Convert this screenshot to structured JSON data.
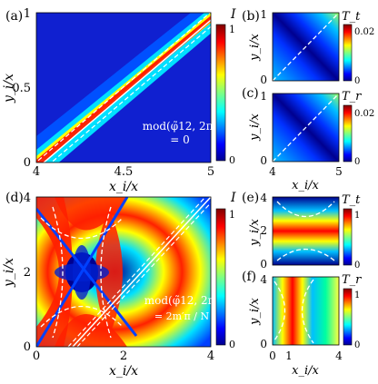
{
  "panels": {
    "a": {
      "label": "(a)",
      "xlabel": "x_i/x",
      "ylabel": "y_i/x",
      "xticks": [
        "4",
        "4.5",
        "5"
      ],
      "yticks": [
        "0",
        "0.5",
        "1"
      ],
      "cbar_title": "I",
      "cbar_ticks": [
        "0",
        "1"
      ],
      "annotation_line1": "mod(φ̃12, 2π)",
      "annotation_line2": "= 0"
    },
    "b": {
      "label": "(b)",
      "ylabel": "y_i/x",
      "yticks": [
        "0",
        "1"
      ],
      "cbar_title": "T_t",
      "cbar_ticks": [
        "0",
        "0.02"
      ]
    },
    "c": {
      "label": "(c)",
      "ylabel": "y_i/x",
      "xlabel": "x_i/x",
      "xticks": [
        "4",
        "5"
      ],
      "yticks": [
        "0",
        "1"
      ],
      "cbar_title": "T_r",
      "cbar_ticks": [
        "0",
        "0.02"
      ]
    },
    "d": {
      "label": "(d)",
      "xlabel": "x_i/x",
      "ylabel": "y_i/x",
      "xticks": [
        "0",
        "2",
        "4"
      ],
      "yticks": [
        "0",
        "2",
        "4"
      ],
      "cbar_title": "I",
      "cbar_ticks": [
        "0",
        "1"
      ],
      "annotation_line1": "mod(φ̃12, 2π)",
      "annotation_line2": "= 2m′π / N"
    },
    "e": {
      "label": "(e)",
      "ylabel": "y_i/x",
      "yticks": [
        "0",
        "2",
        "4"
      ],
      "cbar_title": "T_t",
      "cbar_ticks": [
        "0",
        "1"
      ]
    },
    "f": {
      "label": "(f)",
      "ylabel": "y_i/x",
      "xlabel": "x_i/x",
      "xticks": [
        "0",
        "1",
        "4"
      ],
      "yticks": [
        "0",
        "4"
      ],
      "cbar_title": "T_r",
      "cbar_ticks": [
        "0",
        "1"
      ]
    }
  },
  "colormap": "jet"
}
